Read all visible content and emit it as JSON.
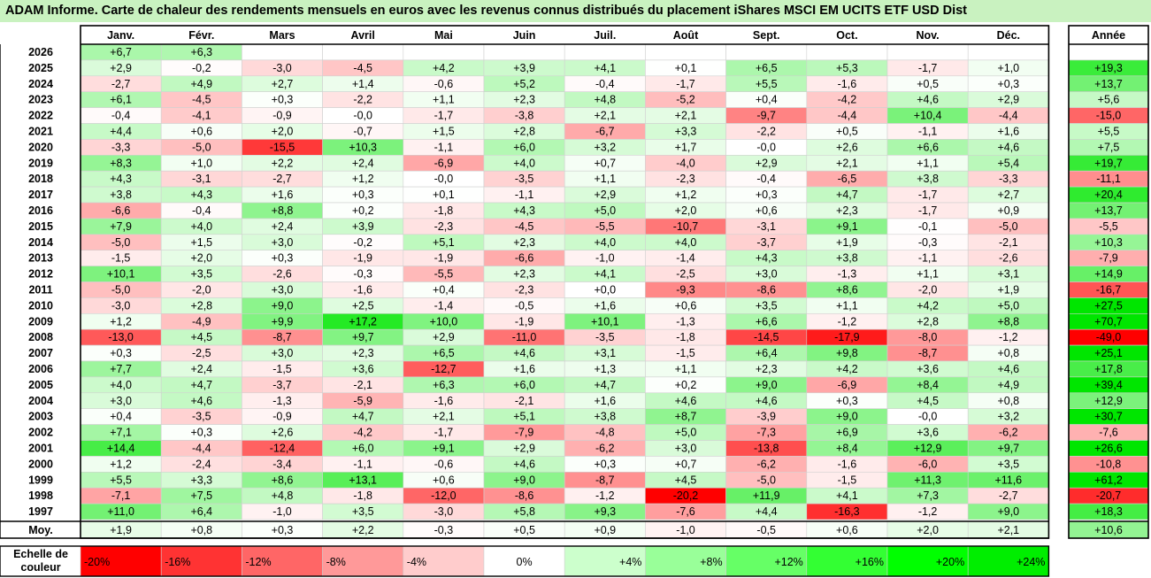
{
  "title": "ADAM Informe. Carte de chaleur des rendements mensuels en euros avec les revenus connus distribués du placement iShares MSCI EM UCITS ETF USD Dist",
  "chart_data": {
    "type": "heatmap",
    "months": [
      "Janv.",
      "Févr.",
      "Mars",
      "Avril",
      "Mai",
      "Juin",
      "Juil.",
      "Août",
      "Sept.",
      "Oct.",
      "Nov.",
      "Déc."
    ],
    "year_header": "Année",
    "rows": [
      {
        "label": "2026",
        "values": [
          "+6,7",
          "+6,3",
          null,
          null,
          null,
          null,
          null,
          null,
          null,
          null,
          null,
          null
        ],
        "year": null
      },
      {
        "label": "2025",
        "values": [
          "+2,9",
          "-0,2",
          "-3,0",
          "-4,5",
          "+4,2",
          "+3,9",
          "+4,1",
          "+0,1",
          "+6,5",
          "+5,3",
          "-1,7",
          "+1,0"
        ],
        "year": "+19,3"
      },
      {
        "label": "2024",
        "values": [
          "-2,7",
          "+4,9",
          "+2,7",
          "+1,4",
          "-0,6",
          "+5,2",
          "-0,4",
          "-1,7",
          "+5,5",
          "-1,6",
          "+0,5",
          "+0,3"
        ],
        "year": "+13,7"
      },
      {
        "label": "2023",
        "values": [
          "+6,1",
          "-4,5",
          "+0,3",
          "-2,2",
          "+1,1",
          "+2,3",
          "+4,8",
          "-5,2",
          "+0,4",
          "-4,2",
          "+4,6",
          "+2,9"
        ],
        "year": "+5,6"
      },
      {
        "label": "2022",
        "values": [
          "-0,4",
          "-4,1",
          "-0,9",
          "-0,0",
          "-1,7",
          "-3,8",
          "+2,1",
          "+2,1",
          "-9,7",
          "-4,4",
          "+10,4",
          "-4,4"
        ],
        "year": "-15,0"
      },
      {
        "label": "2021",
        "values": [
          "+4,4",
          "+0,6",
          "+2,0",
          "-0,7",
          "+1,5",
          "+2,8",
          "-6,7",
          "+3,3",
          "-2,2",
          "+0,5",
          "-1,1",
          "+1,6"
        ],
        "year": "+5,5"
      },
      {
        "label": "2020",
        "values": [
          "-3,3",
          "-5,0",
          "-15,5",
          "+10,3",
          "-1,1",
          "+6,0",
          "+3,2",
          "+1,7",
          "-0,0",
          "+2,6",
          "+6,6",
          "+4,6"
        ],
        "year": "+7,5"
      },
      {
        "label": "2019",
        "values": [
          "+8,3",
          "+1,0",
          "+2,2",
          "+2,4",
          "-6,9",
          "+4,0",
          "+0,7",
          "-4,0",
          "+2,9",
          "+2,1",
          "+1,1",
          "+5,4"
        ],
        "year": "+19,7"
      },
      {
        "label": "2018",
        "values": [
          "+4,3",
          "-3,1",
          "-2,7",
          "+1,2",
          "-0,0",
          "-3,5",
          "+1,1",
          "-2,3",
          "-0,4",
          "-6,5",
          "+3,8",
          "-3,3"
        ],
        "year": "-11,1"
      },
      {
        "label": "2017",
        "values": [
          "+3,8",
          "+4,3",
          "+1,6",
          "+0,3",
          "+0,1",
          "-1,1",
          "+2,9",
          "+1,2",
          "+0,3",
          "+4,7",
          "-1,7",
          "+2,7"
        ],
        "year": "+20,4"
      },
      {
        "label": "2016",
        "values": [
          "-6,6",
          "-0,4",
          "+8,8",
          "+0,2",
          "-1,8",
          "+4,3",
          "+5,0",
          "+2,0",
          "+0,6",
          "+2,3",
          "-1,7",
          "+0,9"
        ],
        "year": "+13,7"
      },
      {
        "label": "2015",
        "values": [
          "+7,9",
          "+4,0",
          "+2,4",
          "+3,9",
          "-2,3",
          "-4,5",
          "-5,5",
          "-10,7",
          "-3,1",
          "+9,1",
          "-0,1",
          "-5,0"
        ],
        "year": "-5,5"
      },
      {
        "label": "2014",
        "values": [
          "-5,0",
          "+1,5",
          "+3,0",
          "-0,2",
          "+5,1",
          "+2,3",
          "+4,0",
          "+4,0",
          "-3,7",
          "+1,9",
          "-0,3",
          "-2,1"
        ],
        "year": "+10,3"
      },
      {
        "label": "2013",
        "values": [
          "-1,5",
          "+2,0",
          "+0,3",
          "-1,9",
          "-1,9",
          "-6,6",
          "-1,0",
          "-1,4",
          "+4,3",
          "+3,8",
          "-1,1",
          "-2,6"
        ],
        "year": "-7,9"
      },
      {
        "label": "2012",
        "values": [
          "+10,1",
          "+3,5",
          "-2,6",
          "-0,3",
          "-5,5",
          "+2,3",
          "+4,1",
          "-2,5",
          "+3,0",
          "-1,3",
          "+1,1",
          "+3,1"
        ],
        "year": "+14,9"
      },
      {
        "label": "2011",
        "values": [
          "-5,0",
          "-2,0",
          "+3,0",
          "-1,6",
          "+0,4",
          "-2,3",
          "+0,0",
          "-9,3",
          "-8,6",
          "+8,6",
          "-2,0",
          "+1,9"
        ],
        "year": "-16,7"
      },
      {
        "label": "2010",
        "values": [
          "-3,0",
          "+2,8",
          "+9,0",
          "+2,5",
          "-1,4",
          "-0,5",
          "+1,6",
          "+0,6",
          "+3,5",
          "+1,1",
          "+4,2",
          "+5,0"
        ],
        "year": "+27,5"
      },
      {
        "label": "2009",
        "values": [
          "+1,2",
          "-4,9",
          "+9,9",
          "+17,2",
          "+10,0",
          "-1,9",
          "+10,1",
          "-1,3",
          "+6,6",
          "-1,2",
          "+2,8",
          "+8,8"
        ],
        "year": "+70,7"
      },
      {
        "label": "2008",
        "values": [
          "-13,0",
          "+4,5",
          "-8,7",
          "+9,7",
          "+2,9",
          "-11,0",
          "-3,5",
          "-1,8",
          "-14,5",
          "-17,9",
          "-8,0",
          "-1,2"
        ],
        "year": "-49,0"
      },
      {
        "label": "2007",
        "values": [
          "+0,3",
          "-2,5",
          "+3,0",
          "+2,3",
          "+6,5",
          "+4,6",
          "+3,1",
          "-1,5",
          "+6,4",
          "+9,8",
          "-8,7",
          "+0,8"
        ],
        "year": "+25,1"
      },
      {
        "label": "2006",
        "values": [
          "+7,7",
          "+2,4",
          "-1,5",
          "+3,6",
          "-12,7",
          "+1,6",
          "+1,3",
          "+1,1",
          "+2,3",
          "+4,2",
          "+3,6",
          "+4,6"
        ],
        "year": "+17,8"
      },
      {
        "label": "2005",
        "values": [
          "+4,0",
          "+4,7",
          "-3,7",
          "-2,1",
          "+6,3",
          "+6,0",
          "+4,7",
          "+0,2",
          "+9,0",
          "-6,9",
          "+8,4",
          "+4,9"
        ],
        "year": "+39,4"
      },
      {
        "label": "2004",
        "values": [
          "+3,0",
          "+4,6",
          "-1,3",
          "-5,9",
          "-1,6",
          "-2,1",
          "+1,6",
          "+4,6",
          "+4,6",
          "+0,3",
          "+4,5",
          "+0,8"
        ],
        "year": "+12,9"
      },
      {
        "label": "2003",
        "values": [
          "+0,4",
          "-3,5",
          "-0,9",
          "+4,7",
          "+2,1",
          "+5,1",
          "+3,8",
          "+8,7",
          "-3,9",
          "+9,0",
          "-0,0",
          "+3,2"
        ],
        "year": "+30,7"
      },
      {
        "label": "2002",
        "values": [
          "+7,1",
          "+0,3",
          "+2,6",
          "-4,2",
          "-1,7",
          "-7,9",
          "-4,8",
          "+5,0",
          "-7,3",
          "+6,9",
          "+3,6",
          "-6,2"
        ],
        "year": "-7,6"
      },
      {
        "label": "2001",
        "values": [
          "+14,4",
          "-4,4",
          "-12,4",
          "+6,0",
          "+9,1",
          "+2,9",
          "-6,2",
          "+3,0",
          "-13,8",
          "+8,4",
          "+12,9",
          "+9,7"
        ],
        "year": "+26,6"
      },
      {
        "label": "2000",
        "values": [
          "+1,2",
          "-2,4",
          "-3,4",
          "-1,1",
          "-0,6",
          "+4,6",
          "+0,3",
          "+0,7",
          "-6,2",
          "-1,6",
          "-6,0",
          "+3,5"
        ],
        "year": "-10,8"
      },
      {
        "label": "1999",
        "values": [
          "+5,5",
          "+3,3",
          "+8,6",
          "+13,1",
          "+0,6",
          "+9,0",
          "-8,7",
          "+4,5",
          "-5,0",
          "-1,5",
          "+11,3",
          "+11,6"
        ],
        "year": "+61,2"
      },
      {
        "label": "1998",
        "values": [
          "-7,1",
          "+7,5",
          "+4,8",
          "-1,8",
          "-12,0",
          "-8,6",
          "-1,2",
          "-20,2",
          "+11,9",
          "+4,1",
          "+7,3",
          "-2,7"
        ],
        "year": "-20,7"
      },
      {
        "label": "1997",
        "values": [
          "+11,0",
          "+6,4",
          "-1,0",
          "+3,5",
          "-3,0",
          "+5,8",
          "+9,3",
          "-7,6",
          "+4,4",
          "-16,3",
          "-1,2",
          "+9,0"
        ],
        "year": "+18,3"
      }
    ],
    "average": {
      "label": "Moy.",
      "values": [
        "+1,9",
        "+0,8",
        "+0,3",
        "+2,2",
        "-0,3",
        "+0,5",
        "+0,9",
        "-1,0",
        "-0,5",
        "+0,6",
        "+2,0",
        "+2,1"
      ],
      "year": "+10,6"
    },
    "scale": {
      "label_line1": "Echelle de",
      "label_line2": "couleur",
      "stops": [
        {
          "label": "-20%",
          "color": "#ff0000"
        },
        {
          "label": "-16%",
          "color": "#ff3333"
        },
        {
          "label": "-12%",
          "color": "#ff6666"
        },
        {
          "label": "-8%",
          "color": "#ff9999"
        },
        {
          "label": "-4%",
          "color": "#ffcccc"
        },
        {
          "label": "0%",
          "color": "#ffffff"
        },
        {
          "label": "+4%",
          "color": "#ccffcc"
        },
        {
          "label": "+8%",
          "color": "#99ff99"
        },
        {
          "label": "+12%",
          "color": "#66ff66"
        },
        {
          "label": "+16%",
          "color": "#33ff33"
        },
        {
          "label": "+20%",
          "color": "#00ff00"
        },
        {
          "label": "+24%",
          "color": "#00ee00"
        }
      ]
    },
    "colors": {
      "negative_max": "#ff0000",
      "positive_max": "#00e600",
      "zero": "#ffffff",
      "title_background": "#c9f2c0"
    }
  }
}
